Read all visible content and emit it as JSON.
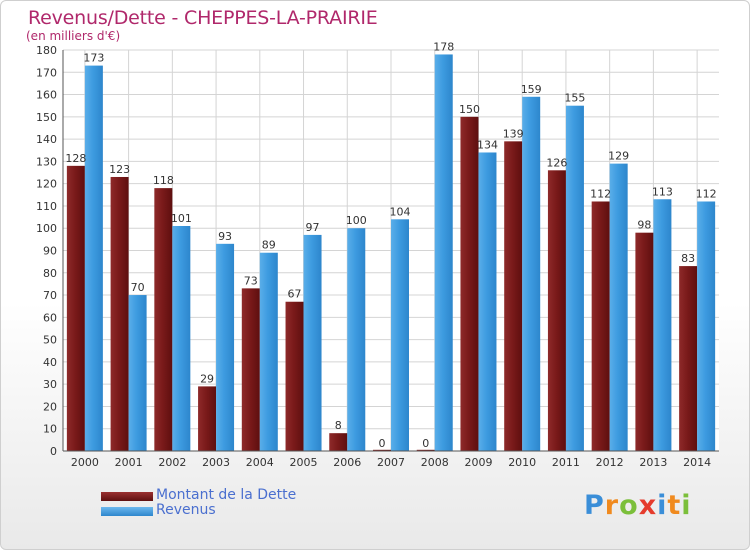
{
  "header": {
    "title": "Revenus/Dette - CHEPPES-LA-PRAIRIE",
    "subtitle": "(en milliers d'€)"
  },
  "legend": {
    "debt_label": "Montant de la Dette",
    "revenue_label": "Revenus"
  },
  "logo": {
    "letters": [
      "P",
      "r",
      "o",
      "x",
      "i",
      "t",
      "i"
    ],
    "colors": [
      "#3a8ed8",
      "#f08a1e",
      "#7bbf3a",
      "#e53b2c",
      "#3a8ed8",
      "#f08a1e",
      "#7bbf3a"
    ]
  },
  "colors": {
    "debt": "#7a1a1a",
    "revenue": "#3d9be0",
    "title": "#b0286b",
    "legend_text": "#4a6fcf"
  },
  "chart_data": {
    "type": "bar",
    "title": "Revenus/Dette - CHEPPES-LA-PRAIRIE",
    "subtitle": "(en milliers d'€)",
    "categories": [
      "2000",
      "2001",
      "2002",
      "2003",
      "2004",
      "2005",
      "2006",
      "2007",
      "2008",
      "2009",
      "2010",
      "2011",
      "2012",
      "2013",
      "2014"
    ],
    "series": [
      {
        "name": "Montant de la Dette",
        "values": [
          128,
          123,
          118,
          29,
          73,
          67,
          8,
          0,
          0,
          150,
          139,
          126,
          112,
          98,
          83
        ]
      },
      {
        "name": "Revenus",
        "values": [
          173,
          70,
          101,
          93,
          89,
          97,
          100,
          104,
          178,
          134,
          159,
          155,
          129,
          113,
          112
        ]
      }
    ],
    "ylim": [
      0,
      180
    ],
    "yticks": [
      "0",
      "10",
      "20",
      "30",
      "40",
      "50",
      "60",
      "70",
      "80",
      "90",
      "100",
      "110",
      "120",
      "130",
      "140",
      "150",
      "160",
      "170",
      "180"
    ],
    "grid": true,
    "legend_position": "bottom-left"
  }
}
